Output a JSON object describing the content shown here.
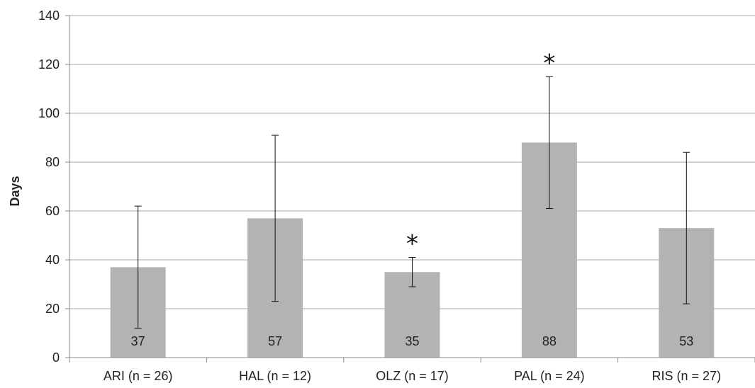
{
  "chart_data": {
    "type": "bar",
    "categories": [
      "ARI (n = 26)",
      "HAL (n = 12)",
      "OLZ (n = 17)",
      "PAL (n = 24)",
      "RIS (n = 27)"
    ],
    "values": [
      37,
      57,
      35,
      88,
      53
    ],
    "data_labels": [
      "37",
      "57",
      "35",
      "88",
      "53"
    ],
    "error_low": [
      12,
      23,
      29,
      61,
      22
    ],
    "error_high": [
      62,
      91,
      41,
      115,
      84
    ],
    "significance_marks": [
      "",
      "",
      "*",
      "*",
      ""
    ],
    "ylabel": "Days",
    "xlabel": "",
    "ylim": [
      0,
      140
    ],
    "yticks": [
      0,
      20,
      40,
      60,
      80,
      100,
      120,
      140
    ],
    "grid": true,
    "legend": "none",
    "colors": {
      "bar": "#b3b3b6",
      "grid": "#a6a6a6",
      "axis": "#888888",
      "error": "#111111"
    }
  }
}
